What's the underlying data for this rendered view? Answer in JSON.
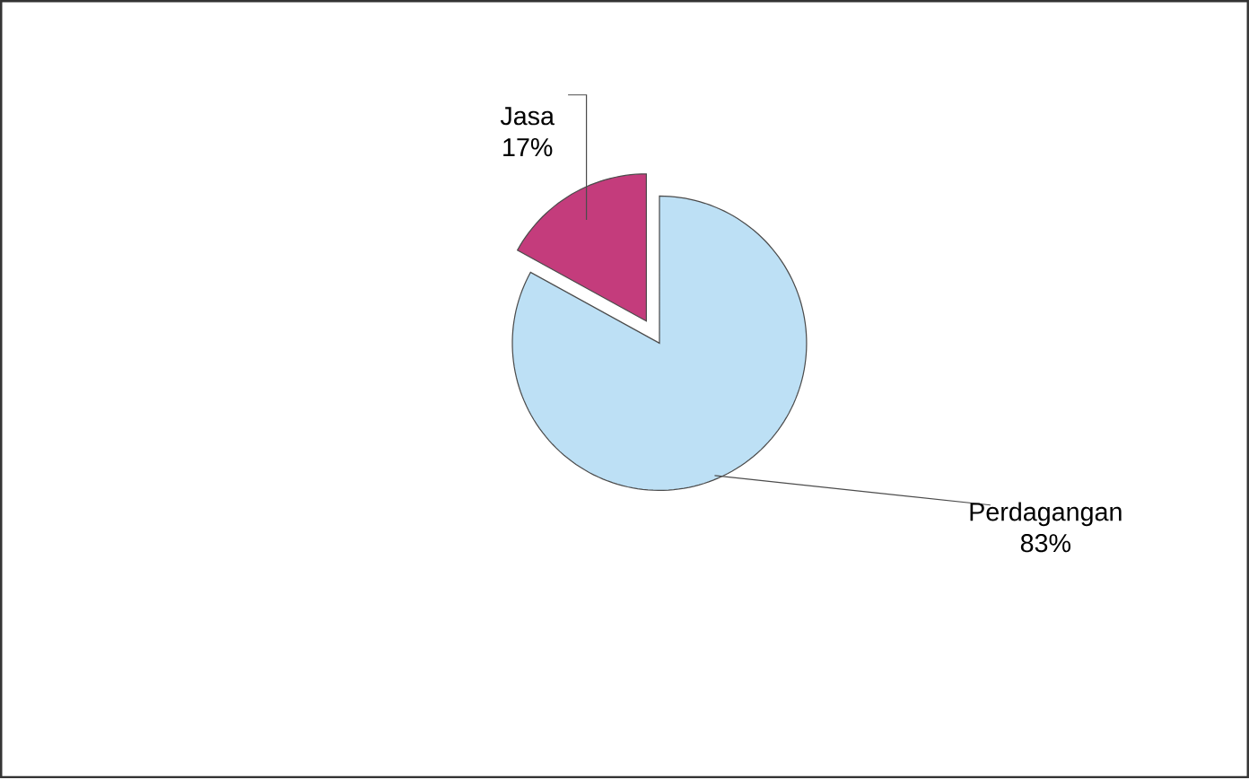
{
  "chart_data": {
    "type": "pie",
    "categories": [
      "Jasa",
      "Perdagangan"
    ],
    "values": [
      17,
      83
    ],
    "value_labels": [
      "17%",
      "83%"
    ],
    "colors": [
      "#c43c7c",
      "#bde0f5"
    ]
  }
}
